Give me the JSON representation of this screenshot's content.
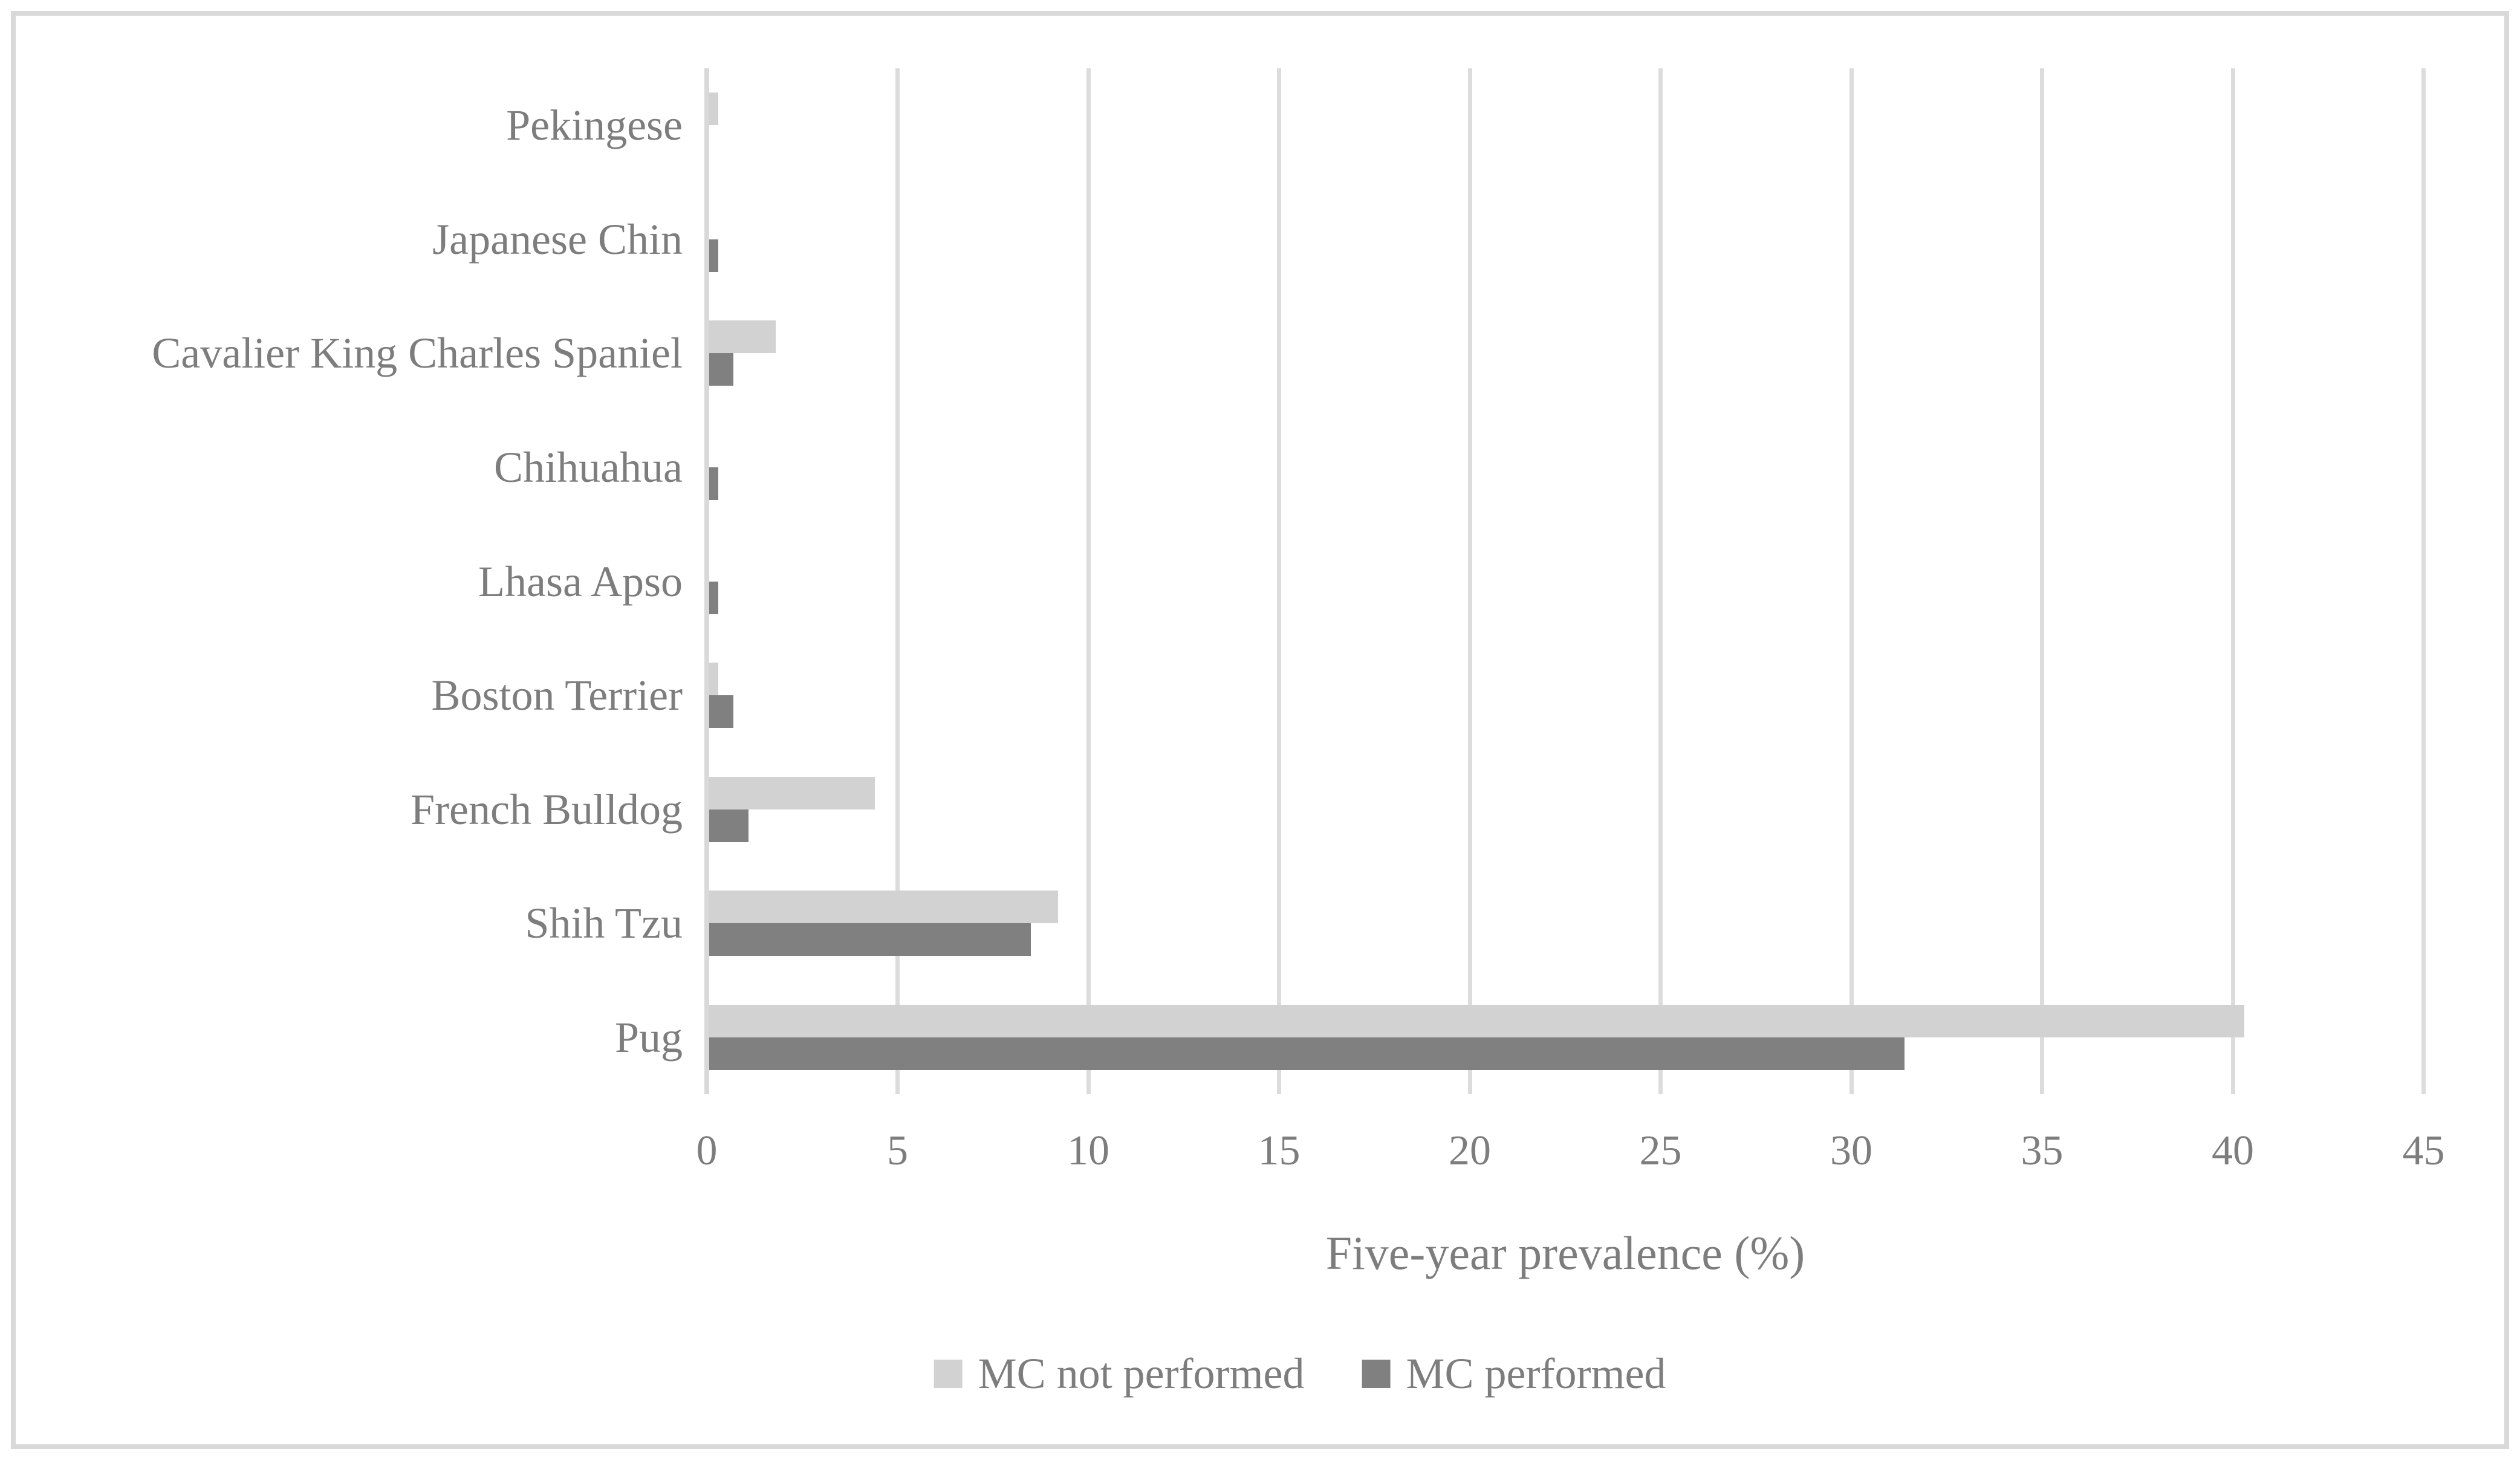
{
  "chart_data": {
    "type": "bar",
    "orientation": "horizontal",
    "title": "",
    "xlabel": "Five-year prevalence (%)",
    "ylabel": "",
    "categories": [
      "Pekingese",
      "Japanese Chin",
      "Cavalier King Charles Spaniel",
      "Chihuahua",
      "Lhasa Apso",
      "Boston Terrier",
      "French Bulldog",
      "Shih Tzu",
      "Pug"
    ],
    "series": [
      {
        "name": "MC not performed",
        "color": "#d2d2d2",
        "values": [
          0.3,
          0,
          1.8,
          0,
          0,
          0.3,
          4.4,
          9.2,
          40.3
        ]
      },
      {
        "name": "MC performed",
        "color": "#808080",
        "values": [
          0,
          0.3,
          0.7,
          0.3,
          0.3,
          0.7,
          1.1,
          8.5,
          31.4
        ]
      }
    ],
    "xlim": [
      0,
      45
    ],
    "xticks": [
      0,
      5,
      10,
      15,
      20,
      25,
      30,
      35,
      40,
      45
    ],
    "grid": true,
    "legend_position": "bottom"
  },
  "colors": {
    "bar_light": "#d2d2d2",
    "bar_dark": "#808080",
    "gridline": "#dcdcdc",
    "axis_line": "#d9d9d9",
    "text": "#7d7d7d",
    "figure_border": "#d9d9d9",
    "background": "#ffffff"
  }
}
